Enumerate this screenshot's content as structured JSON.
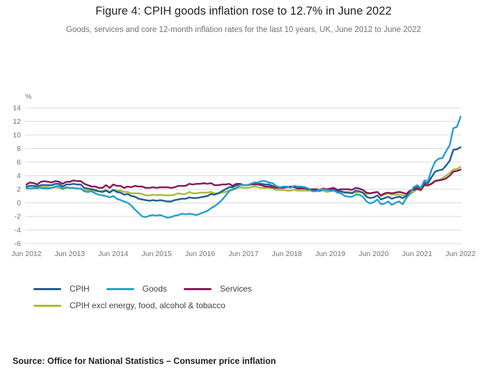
{
  "title": "Figure 4: CPIH goods inflation rose to 12.7% in June 2022",
  "subtitle": "Goods, services and core 12-month inflation rates for the last 10 years, UK, June 2012 to June 2022",
  "source": "Source: Office for National Statistics – Consumer price inflation",
  "colors": {
    "grid": "#d9d9d9",
    "axis_text": "#707071",
    "cpih": "#206095",
    "goods": "#27a0cc",
    "services": "#871a5b",
    "core": "#a8bd3a"
  },
  "chart_data": {
    "type": "line",
    "title": "Figure 4: CPIH goods inflation rose to 12.7% in June 2022",
    "xlabel": "",
    "ylabel": "%",
    "ylim": [
      -6,
      14
    ],
    "ytick_step": 2,
    "grid": "horizontal",
    "legend_position": "bottom",
    "x_tick_labels": [
      "Jun 2012",
      "Jun 2013",
      "Jun 2014",
      "Jun 2015",
      "Jun 2016",
      "Jun 2017",
      "Jun 2018",
      "Jun 2019",
      "Jun 2020",
      "Jun 2021",
      "Jun 2022"
    ],
    "x_frequency": "monthly",
    "series": [
      {
        "name": "CPIH",
        "color": "#206095",
        "values": [
          2.4,
          2.5,
          2.5,
          2.4,
          2.6,
          2.6,
          2.6,
          2.6,
          2.8,
          2.8,
          2.4,
          2.7,
          2.7,
          2.8,
          2.7,
          2.7,
          2.2,
          2.1,
          2.0,
          1.9,
          1.7,
          1.6,
          1.8,
          1.5,
          1.9,
          1.6,
          1.5,
          1.2,
          1.3,
          1.0,
          0.9,
          0.6,
          0.5,
          0.4,
          0.3,
          0.4,
          0.3,
          0.4,
          0.3,
          0.2,
          0.2,
          0.4,
          0.5,
          0.6,
          0.6,
          0.8,
          0.7,
          0.7,
          0.8,
          0.9,
          1.0,
          1.3,
          1.2,
          1.4,
          1.7,
          2.0,
          2.3,
          2.3,
          2.6,
          2.7,
          2.6,
          2.6,
          2.7,
          2.8,
          2.8,
          2.8,
          2.7,
          2.7,
          2.5,
          2.3,
          2.2,
          2.3,
          2.3,
          2.3,
          2.4,
          2.2,
          2.2,
          2.2,
          2.0,
          1.8,
          1.8,
          1.8,
          2.0,
          1.9,
          1.9,
          2.0,
          1.7,
          1.7,
          1.5,
          1.5,
          1.4,
          1.8,
          1.7,
          1.5,
          0.9,
          0.7,
          0.8,
          1.1,
          0.5,
          0.7,
          0.9,
          0.6,
          0.8,
          0.9,
          0.7,
          1.0,
          1.6,
          2.1,
          2.4,
          2.1,
          3.0,
          2.9,
          3.8,
          4.6,
          4.8,
          4.9,
          5.5,
          6.2,
          7.8,
          7.9,
          8.2
        ]
      },
      {
        "name": "Goods",
        "color": "#27a0cc",
        "values": [
          2.2,
          2.1,
          2.2,
          2.2,
          2.2,
          2.1,
          2.1,
          2.2,
          2.4,
          2.5,
          2.1,
          2.3,
          2.2,
          2.2,
          2.1,
          2.1,
          1.7,
          1.6,
          1.7,
          1.4,
          1.2,
          1.1,
          1.0,
          0.8,
          1.0,
          0.6,
          0.4,
          0.2,
          0.0,
          -0.4,
          -1.0,
          -1.5,
          -2.0,
          -2.1,
          -1.9,
          -1.8,
          -1.9,
          -1.8,
          -2.0,
          -2.2,
          -2.1,
          -1.9,
          -1.8,
          -1.6,
          -1.7,
          -1.6,
          -1.7,
          -1.8,
          -1.6,
          -1.4,
          -1.2,
          -0.8,
          -0.5,
          -0.1,
          0.4,
          1.0,
          1.7,
          2.0,
          2.2,
          2.6,
          2.6,
          2.6,
          2.8,
          3.0,
          3.0,
          3.2,
          3.2,
          3.0,
          2.9,
          2.5,
          2.3,
          2.4,
          2.4,
          2.2,
          2.5,
          2.4,
          2.4,
          2.3,
          2.1,
          1.7,
          1.7,
          1.9,
          2.0,
          1.9,
          1.8,
          1.8,
          1.5,
          1.4,
          1.0,
          0.9,
          0.9,
          1.2,
          1.2,
          0.9,
          0.2,
          -0.1,
          0.1,
          0.5,
          -0.2,
          -0.1,
          0.2,
          -0.3,
          0.0,
          0.2,
          -0.2,
          0.7,
          1.3,
          2.3,
          2.6,
          2.2,
          3.3,
          3.2,
          4.9,
          6.1,
          6.5,
          6.6,
          7.6,
          8.5,
          11.0,
          11.2,
          12.7
        ]
      },
      {
        "name": "Services",
        "color": "#871a5b",
        "values": [
          2.7,
          3.0,
          2.9,
          2.7,
          3.1,
          3.2,
          3.1,
          3.0,
          3.2,
          3.1,
          2.8,
          3.1,
          3.1,
          3.3,
          3.2,
          3.2,
          2.8,
          2.6,
          2.4,
          2.4,
          2.2,
          2.2,
          2.6,
          2.2,
          2.7,
          2.5,
          2.5,
          2.2,
          2.4,
          2.3,
          2.5,
          2.4,
          2.4,
          2.2,
          2.2,
          2.3,
          2.2,
          2.3,
          2.3,
          2.3,
          2.2,
          2.3,
          2.5,
          2.5,
          2.5,
          2.8,
          2.7,
          2.8,
          2.8,
          2.9,
          2.8,
          2.9,
          2.6,
          2.6,
          2.7,
          2.7,
          2.8,
          2.5,
          2.8,
          2.8,
          2.6,
          2.6,
          2.7,
          2.7,
          2.7,
          2.6,
          2.4,
          2.4,
          2.3,
          2.2,
          2.2,
          2.2,
          2.3,
          2.4,
          2.3,
          2.1,
          2.1,
          2.1,
          2.0,
          2.0,
          2.0,
          1.9,
          2.1,
          2.0,
          2.1,
          2.2,
          1.9,
          2.0,
          2.0,
          2.0,
          1.9,
          2.2,
          2.1,
          1.9,
          1.5,
          1.4,
          1.5,
          1.6,
          1.1,
          1.4,
          1.5,
          1.4,
          1.5,
          1.6,
          1.5,
          1.3,
          1.8,
          1.9,
          2.1,
          1.9,
          2.7,
          2.6,
          2.8,
          3.2,
          3.3,
          3.4,
          3.6,
          4.0,
          4.6,
          4.7,
          4.9
        ]
      },
      {
        "name": "CPIH excl energy, food, alcohol & tobacco",
        "color": "#a8bd3a",
        "values": [
          2.1,
          2.1,
          2.1,
          2.1,
          2.3,
          2.3,
          2.3,
          2.2,
          2.3,
          2.2,
          2.0,
          2.2,
          2.2,
          2.2,
          2.1,
          2.1,
          1.9,
          1.8,
          1.8,
          1.7,
          1.7,
          1.7,
          1.9,
          1.6,
          1.9,
          1.8,
          1.8,
          1.6,
          1.6,
          1.4,
          1.4,
          1.4,
          1.3,
          1.1,
          1.1,
          1.2,
          1.1,
          1.2,
          1.1,
          1.1,
          1.1,
          1.2,
          1.4,
          1.3,
          1.3,
          1.6,
          1.4,
          1.4,
          1.5,
          1.5,
          1.5,
          1.6,
          1.4,
          1.4,
          1.5,
          1.6,
          1.8,
          1.9,
          2.1,
          2.3,
          2.2,
          2.2,
          2.3,
          2.4,
          2.3,
          2.2,
          2.2,
          2.2,
          2.1,
          1.9,
          1.9,
          1.9,
          1.8,
          1.8,
          1.9,
          1.8,
          1.8,
          1.8,
          1.8,
          1.8,
          1.8,
          1.7,
          1.8,
          1.6,
          1.7,
          1.8,
          1.6,
          1.6,
          1.6,
          1.6,
          1.5,
          1.5,
          1.6,
          1.5,
          1.3,
          1.4,
          1.5,
          1.6,
          1.0,
          1.2,
          1.4,
          1.2,
          1.2,
          1.2,
          1.1,
          1.0,
          1.3,
          1.6,
          2.0,
          1.8,
          2.5,
          2.5,
          2.9,
          3.3,
          3.4,
          3.6,
          4.0,
          4.4,
          4.9,
          5.0,
          5.3
        ]
      }
    ]
  }
}
